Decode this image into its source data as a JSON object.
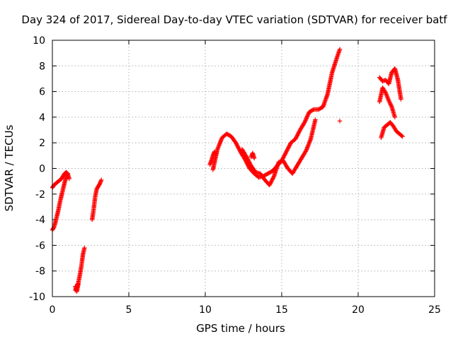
{
  "chart_data": {
    "type": "scatter",
    "title": "Day 324 of 2017, Sidereal Day-to-day VTEC variation (SDTVAR) for receiver batf",
    "xlabel": "GPS time / hours",
    "ylabel": "SDTVAR / TECUs",
    "xlim": [
      0,
      25
    ],
    "ylim": [
      -10,
      10
    ],
    "xticks": [
      "0",
      "5",
      "10",
      "15",
      "20",
      "25"
    ],
    "yticks": [
      "-10",
      "-8",
      "-6",
      "-4",
      "-2",
      "0",
      "2",
      "4",
      "6",
      "8",
      "10"
    ],
    "grid": true,
    "marker": "plus",
    "color": "#ff0000",
    "series": [
      {
        "segments": [
          {
            "x": [
              0.0,
              0.1,
              0.2,
              0.3,
              0.4,
              0.5,
              0.6,
              0.7,
              0.8,
              0.9,
              1.0,
              1.1
            ],
            "y": [
              -1.5,
              -1.3,
              -1.2,
              -1.1,
              -1.0,
              -0.9,
              -0.8,
              -0.6,
              -0.4,
              -0.3,
              -0.4,
              -0.8
            ]
          },
          {
            "x": [
              0.0,
              0.1,
              0.2,
              0.3,
              0.4,
              0.5,
              0.6,
              0.7,
              0.8,
              0.9,
              1.0
            ],
            "y": [
              -4.8,
              -4.6,
              -4.2,
              -3.7,
              -3.2,
              -2.6,
              -2.1,
              -1.6,
              -1.1,
              -0.7,
              -0.4
            ]
          },
          {
            "x": [
              1.5,
              1.6,
              1.7,
              1.8,
              1.9,
              2.0,
              2.1
            ],
            "y": [
              -9.5,
              -9.3,
              -8.9,
              -8.3,
              -7.6,
              -6.7,
              -6.2
            ]
          },
          {
            "x": [
              1.5,
              1.6,
              1.7
            ],
            "y": [
              -9.2,
              -9.6,
              -9.0
            ]
          },
          {
            "x": [
              2.6,
              2.7,
              2.8,
              2.9,
              3.0,
              3.1,
              3.2
            ],
            "y": [
              -4.0,
              -3.2,
              -2.2,
              -1.6,
              -1.4,
              -1.2,
              -0.9
            ]
          },
          {
            "x": [
              10.3,
              10.4,
              10.5,
              10.6,
              10.7
            ],
            "y": [
              0.3,
              0.6,
              1.0,
              1.3,
              1.1
            ]
          },
          {
            "x": [
              10.5,
              10.8,
              11.1,
              11.4,
              11.7,
              12.0,
              12.3,
              12.6,
              12.9,
              13.2,
              13.5,
              13.8,
              14.1,
              14.4,
              14.7,
              15.0,
              15.3,
              15.6,
              15.9,
              16.2,
              16.5,
              16.8,
              17.1,
              17.4,
              17.7,
              18.0,
              18.3,
              18.6,
              18.8
            ],
            "y": [
              -0.1,
              1.5,
              2.4,
              2.7,
              2.5,
              2.0,
              1.3,
              0.7,
              0.0,
              -0.4,
              -0.7,
              -0.6,
              -0.4,
              -0.2,
              0.2,
              0.6,
              1.3,
              2.0,
              2.3,
              3.0,
              3.6,
              4.4,
              4.6,
              4.6,
              4.8,
              5.8,
              7.5,
              8.6,
              9.3
            ]
          },
          {
            "x": [
              12.4,
              12.7,
              13.0,
              13.3,
              13.6,
              13.9,
              14.2,
              14.5,
              14.8,
              15.1,
              15.4,
              15.7,
              16.0,
              16.3,
              16.6,
              16.9,
              17.2
            ],
            "y": [
              1.5,
              0.9,
              0.2,
              -0.3,
              -0.4,
              -0.9,
              -1.3,
              -0.6,
              0.5,
              0.6,
              0.0,
              -0.4,
              0.2,
              0.8,
              1.4,
              2.3,
              3.8
            ]
          },
          {
            "x": [
              13.0,
              13.1,
              13.2
            ],
            "y": [
              0.9,
              1.2,
              0.8
            ]
          },
          {
            "x": [
              18.8
            ],
            "y": [
              3.7
            ]
          },
          {
            "x": [
              21.4,
              21.6,
              21.8,
              22.0,
              22.2,
              22.4,
              22.6,
              22.8
            ],
            "y": [
              7.1,
              6.8,
              6.9,
              6.6,
              7.5,
              7.8,
              6.9,
              5.4
            ]
          },
          {
            "x": [
              21.4,
              21.6,
              21.8,
              22.0,
              22.2,
              22.4
            ],
            "y": [
              5.2,
              6.3,
              5.9,
              5.3,
              4.8,
              4.0
            ]
          },
          {
            "x": [
              21.5,
              21.7,
              21.9,
              22.1,
              22.3,
              22.5,
              22.7,
              22.9
            ],
            "y": [
              2.4,
              3.2,
              3.4,
              3.6,
              3.3,
              2.9,
              2.7,
              2.5
            ]
          }
        ]
      }
    ]
  }
}
